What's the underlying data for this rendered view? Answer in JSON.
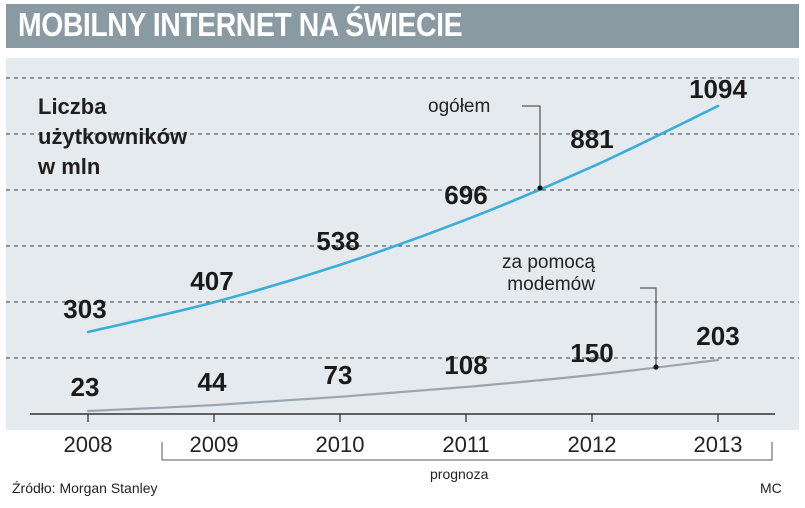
{
  "header": {
    "title": "MOBILNY INTERNET NA ŚWIECIE"
  },
  "chart_data": {
    "type": "line",
    "title": "MOBILNY INTERNET NA ŚWIECIE",
    "ylabel_lines": [
      "Liczba",
      "użytkowników",
      "w mln"
    ],
    "categories": [
      "2008",
      "2009",
      "2010",
      "2011",
      "2012",
      "2013"
    ],
    "series": [
      {
        "name": "ogółem",
        "values": [
          303,
          407,
          538,
          696,
          881,
          1094
        ],
        "color": "#3aaed8"
      },
      {
        "name": "za pomocą modemów",
        "values": [
          23,
          44,
          73,
          108,
          150,
          203
        ],
        "color": "#9aa6ad"
      }
    ],
    "annotations": {
      "total": "ogółem",
      "modem_line1": "za pomocą",
      "modem_line2": "modemów",
      "forecast": "prognoza"
    },
    "forecast_range": [
      "2009",
      "2013"
    ],
    "grid": true
  },
  "footer": {
    "source": "Źródło: Morgan Stanley",
    "credit": "MC"
  }
}
